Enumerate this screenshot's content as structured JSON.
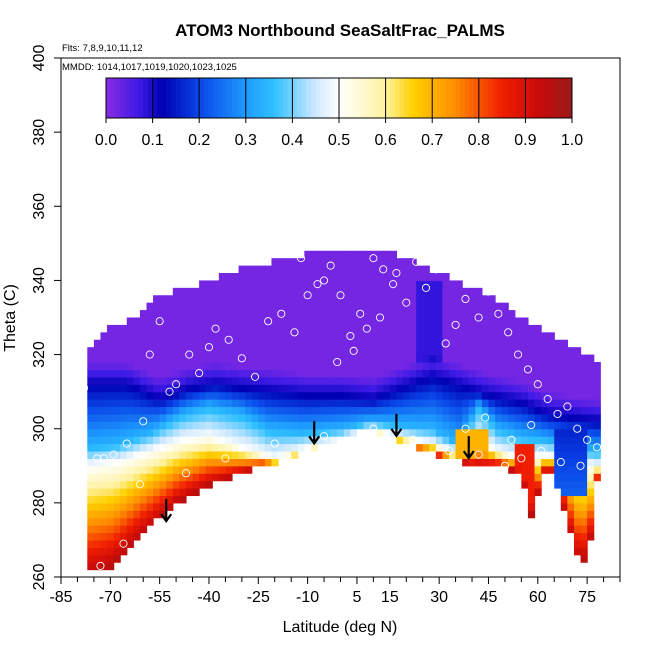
{
  "chart_data": {
    "type": "heatmap",
    "title": "ATOM3 Northbound SeaSaltFrac_PALMS",
    "subtitle_lines": [
      "Flts: 7,8,9,10,11,12",
      "MMDD: 1014,1017,1019,1020,1023,1025"
    ],
    "xlabel": "Latitude (deg N)",
    "ylabel": "Theta (C)",
    "xlim": [
      -85,
      85
    ],
    "ylim": [
      260,
      400
    ],
    "x_ticks": [
      -85,
      -70,
      -55,
      -40,
      -25,
      -10,
      5,
      15,
      30,
      45,
      60,
      75
    ],
    "x_minor_ticks": [
      -80,
      -75,
      -65,
      -60,
      -50,
      -45,
      -35,
      -30,
      -20,
      -15,
      -5,
      0,
      10,
      20,
      25,
      35,
      40,
      50,
      55,
      65,
      70,
      80,
      85
    ],
    "y_ticks": [
      260,
      280,
      300,
      320,
      340,
      360,
      380,
      400
    ],
    "colorbar": {
      "range": [
        0.0,
        1.0
      ],
      "ticks": [
        "0.0",
        "0.1",
        "0.2",
        "0.3",
        "0.4",
        "0.5",
        "0.6",
        "0.7",
        "0.8",
        "0.9",
        "1.0"
      ],
      "stops": [
        {
          "v": 0.0,
          "c": "#8a2be2"
        },
        {
          "v": 0.07,
          "c": "#3f1be6"
        },
        {
          "v": 0.12,
          "c": "#0000b3"
        },
        {
          "v": 0.2,
          "c": "#0a46e8"
        },
        {
          "v": 0.3,
          "c": "#1e9bff"
        },
        {
          "v": 0.36,
          "c": "#2fbfff"
        },
        {
          "v": 0.45,
          "c": "#cfe9ff"
        },
        {
          "v": 0.5,
          "c": "#ffffff"
        },
        {
          "v": 0.6,
          "c": "#fff2a0"
        },
        {
          "v": 0.66,
          "c": "#ffd000"
        },
        {
          "v": 0.75,
          "c": "#ff8c00"
        },
        {
          "v": 0.85,
          "c": "#f01e00"
        },
        {
          "v": 0.93,
          "c": "#c80a0a"
        },
        {
          "v": 1.0,
          "c": "#9a1b1b"
        }
      ]
    },
    "domain": {
      "top": [
        [
          -77,
          322
        ],
        [
          -70,
          327
        ],
        [
          -62,
          330
        ],
        [
          -55,
          336
        ],
        [
          -45,
          338
        ],
        [
          -35,
          342
        ],
        [
          -25,
          344
        ],
        [
          -15,
          346
        ],
        [
          -5,
          348
        ],
        [
          5,
          349
        ],
        [
          15,
          348
        ],
        [
          25,
          344
        ],
        [
          35,
          340
        ],
        [
          45,
          336
        ],
        [
          55,
          330
        ],
        [
          62,
          326
        ],
        [
          70,
          322
        ],
        [
          78,
          318
        ]
      ],
      "bottom": [
        [
          -77,
          261
        ],
        [
          -70,
          263
        ],
        [
          -60,
          272
        ],
        [
          -50,
          280
        ],
        [
          -40,
          285
        ],
        [
          -30,
          288
        ],
        [
          -20,
          291
        ],
        [
          -10,
          294
        ],
        [
          0,
          297
        ],
        [
          9,
          300
        ],
        [
          20,
          296
        ],
        [
          30,
          293
        ],
        [
          40,
          290
        ],
        [
          48,
          290
        ],
        [
          55,
          288
        ],
        [
          58,
          277
        ],
        [
          63,
          291
        ],
        [
          68,
          278
        ],
        [
          73,
          262
        ],
        [
          76,
          270
        ],
        [
          78,
          286
        ]
      ]
    },
    "layers": {
      "purple_floor": [
        [
          -77,
          312
        ],
        [
          -65,
          312
        ],
        [
          -55,
          308
        ],
        [
          -45,
          311
        ],
        [
          -38,
          312
        ],
        [
          -30,
          311
        ],
        [
          -20,
          310
        ],
        [
          -10,
          309
        ],
        [
          0,
          309
        ],
        [
          10,
          308
        ],
        [
          22,
          312
        ],
        [
          28,
          314
        ],
        [
          35,
          312
        ],
        [
          45,
          309
        ],
        [
          55,
          307
        ],
        [
          63,
          304
        ],
        [
          70,
          303
        ],
        [
          78,
          302
        ]
      ],
      "blue_bottom": [
        [
          -77,
          295
        ],
        [
          -68,
          296
        ],
        [
          -58,
          299
        ],
        [
          -48,
          304
        ],
        [
          -40,
          306
        ],
        [
          -30,
          304
        ],
        [
          -22,
          300
        ],
        [
          -12,
          299
        ],
        [
          0,
          300
        ],
        [
          9,
          302
        ],
        [
          18,
          301
        ],
        [
          28,
          300
        ],
        [
          36,
          296
        ],
        [
          42,
          306
        ],
        [
          48,
          300
        ],
        [
          55,
          298
        ],
        [
          63,
          297
        ],
        [
          70,
          295
        ],
        [
          78,
          294
        ]
      ],
      "white_line": [
        [
          -77,
          290
        ],
        [
          -68,
          291
        ],
        [
          -58,
          294
        ],
        [
          -48,
          297
        ],
        [
          -40,
          298
        ],
        [
          -30,
          295
        ],
        [
          -20,
          292
        ],
        [
          -10,
          295
        ],
        [
          0,
          297
        ],
        [
          9,
          300
        ],
        [
          18,
          298
        ],
        [
          28,
          296
        ],
        [
          36,
          293
        ],
        [
          42,
          297
        ],
        [
          48,
          294
        ],
        [
          55,
          292
        ],
        [
          63,
          293
        ],
        [
          70,
          291
        ],
        [
          78,
          290
        ]
      ]
    },
    "sample_points": [
      [
        -78,
        311
      ],
      [
        -80,
        295
      ],
      [
        -76,
        289
      ],
      [
        -74,
        292
      ],
      [
        -72,
        292
      ],
      [
        -69,
        293
      ],
      [
        -65,
        296
      ],
      [
        -60,
        302
      ],
      [
        -58,
        320
      ],
      [
        -55,
        329
      ],
      [
        -52,
        310
      ],
      [
        -50,
        312
      ],
      [
        -46,
        320
      ],
      [
        -43,
        315
      ],
      [
        -40,
        322
      ],
      [
        -38,
        327
      ],
      [
        -34,
        324
      ],
      [
        -30,
        319
      ],
      [
        -26,
        314
      ],
      [
        -22,
        329
      ],
      [
        -18,
        331
      ],
      [
        -14,
        326
      ],
      [
        -10,
        336
      ],
      [
        -7,
        339
      ],
      [
        -3,
        344
      ],
      [
        0,
        336
      ],
      [
        3,
        325
      ],
      [
        6,
        331
      ],
      [
        10,
        346
      ],
      [
        13,
        343
      ],
      [
        16,
        339
      ],
      [
        -12,
        346
      ],
      [
        -5,
        340
      ],
      [
        -1,
        318
      ],
      [
        4,
        321
      ],
      [
        8,
        327
      ],
      [
        12,
        330
      ],
      [
        17,
        342
      ],
      [
        20,
        334
      ],
      [
        23,
        345
      ],
      [
        26,
        338
      ],
      [
        29,
        343
      ],
      [
        32,
        323
      ],
      [
        35,
        328
      ],
      [
        38,
        335
      ],
      [
        42,
        330
      ],
      [
        45,
        337
      ],
      [
        48,
        331
      ],
      [
        51,
        326
      ],
      [
        54,
        320
      ],
      [
        57,
        316
      ],
      [
        60,
        312
      ],
      [
        63,
        308
      ],
      [
        66,
        304
      ],
      [
        69,
        306
      ],
      [
        72,
        300
      ],
      [
        75,
        297
      ],
      [
        78,
        295
      ],
      [
        -61,
        285
      ],
      [
        -47,
        288
      ],
      [
        -35,
        292
      ],
      [
        -20,
        296
      ],
      [
        -5,
        298
      ],
      [
        10,
        300
      ],
      [
        22,
        297
      ],
      [
        33,
        294
      ],
      [
        42,
        293
      ],
      [
        50,
        290
      ],
      [
        55,
        292
      ],
      [
        61,
        294
      ],
      [
        67,
        291
      ],
      [
        73,
        290
      ],
      [
        -66,
        269
      ],
      [
        -73,
        263
      ],
      [
        -57,
        271
      ],
      [
        -83,
        301
      ],
      [
        38,
        300
      ],
      [
        44,
        303
      ],
      [
        52,
        297
      ],
      [
        58,
        301
      ]
    ],
    "arrows": [
      [
        -53,
        281
      ],
      [
        -8,
        302
      ],
      [
        17,
        304
      ],
      [
        39,
        298
      ]
    ]
  }
}
